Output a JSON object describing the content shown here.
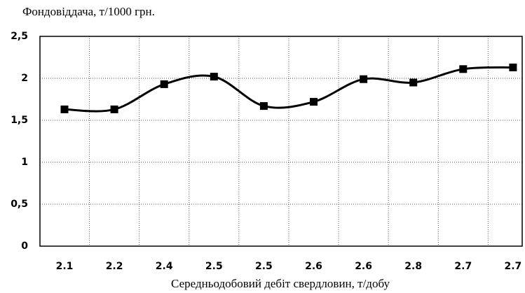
{
  "chart_data": {
    "type": "line",
    "ylabel": "Фондовіддача, т/1000 грн.",
    "xlabel": "Середньодобовий дебіт свердловин, т/добу",
    "categories": [
      "2.1",
      "2.2",
      "2.4",
      "2.5",
      "2.5",
      "2.6",
      "2.6",
      "2.8",
      "2.7",
      "2.7"
    ],
    "series": [
      {
        "color": "#000000",
        "values": [
          1.63,
          1.63,
          1.93,
          2.02,
          1.67,
          1.72,
          1.99,
          1.95,
          2.11,
          2.13
        ]
      }
    ],
    "ylim": [
      0,
      2.5
    ],
    "yticks": [
      0,
      {
        "value": 0.5,
        "label": "0,5"
      },
      1,
      {
        "value": 1.5,
        "label": "1,5"
      },
      2,
      {
        "value": 2.5,
        "label": "2,5"
      }
    ],
    "grid": true
  }
}
